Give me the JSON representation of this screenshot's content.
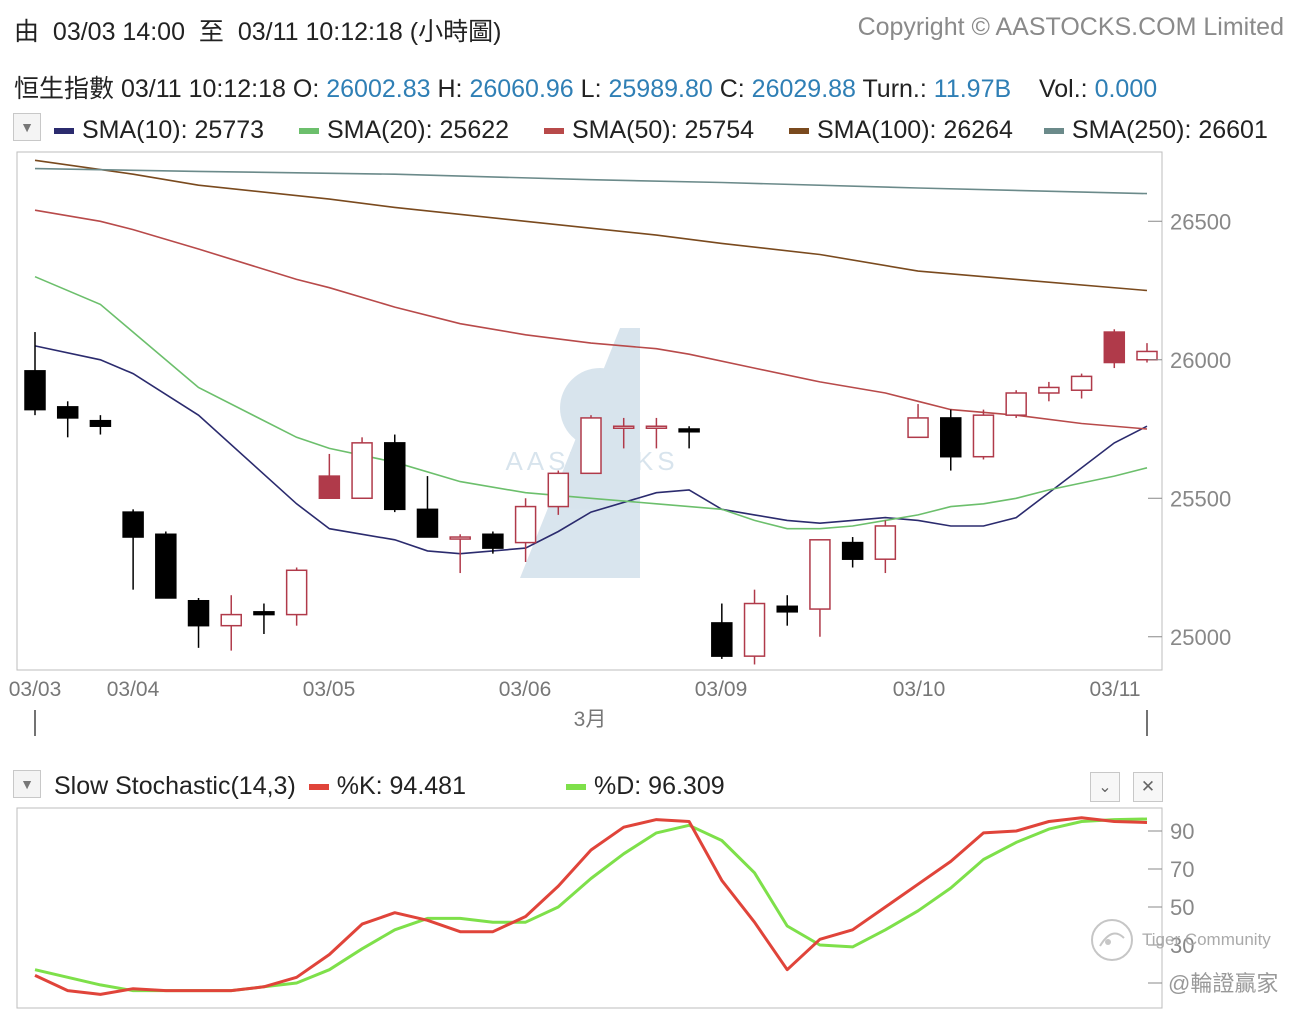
{
  "header": {
    "from_label": "由",
    "start": "03/03 14:00",
    "to_label": "至",
    "end": "03/11 10:12:18",
    "interval": "(小時圖)",
    "copyright": "Copyright © AASTOCKS.COM Limited"
  },
  "quote": {
    "name": "恒生指數",
    "time": "03/11 10:12:18",
    "o_label": "O:",
    "o": "26002.83",
    "h_label": "H:",
    "h": "26060.96",
    "l_label": "L:",
    "l": "25989.80",
    "c_label": "C:",
    "c": "26029.88",
    "turn_label": "Turn.:",
    "turn": "11.97B",
    "vol_label": "Vol.:",
    "vol": "0.000"
  },
  "sma_legend": [
    {
      "label": "SMA(10): 25773",
      "color": "#2b2b6e"
    },
    {
      "label": "SMA(20): 25622",
      "color": "#6cbf6c"
    },
    {
      "label": "SMA(50): 25754",
      "color": "#b84a4a"
    },
    {
      "label": "SMA(100): 26264",
      "color": "#7a4a1e"
    },
    {
      "label": "SMA(250): 26601",
      "color": "#6b8a8a"
    }
  ],
  "watermark": "AASTOCKS",
  "month_label": "3月",
  "stoch": {
    "title": "Slow Stochastic(14,3)",
    "k_label": "%K: 94.481",
    "d_label": "%D: 96.309",
    "k_color": "#e0443a",
    "d_color": "#7ee04a"
  },
  "tiger": {
    "brand": "Tiger Community",
    "user": "@輪證贏家"
  },
  "chart_data": [
    {
      "type": "candlestick",
      "x_tick_labels": [
        "03/03",
        "03/04",
        "03/05",
        "03/06",
        "03/09",
        "03/10",
        "03/11"
      ],
      "y_ticks": [
        25000,
        25500,
        26000,
        26500
      ],
      "ylim": [
        24880,
        26750
      ],
      "candles": [
        {
          "o": 25960,
          "h": 26100,
          "l": 25800,
          "c": 25820
        },
        {
          "o": 25830,
          "h": 25850,
          "l": 25720,
          "c": 25790
        },
        {
          "o": 25780,
          "h": 25800,
          "l": 25730,
          "c": 25760
        },
        {
          "o": 25450,
          "h": 25460,
          "l": 25170,
          "c": 25360
        },
        {
          "o": 25370,
          "h": 25380,
          "l": 25140,
          "c": 25140
        },
        {
          "o": 25130,
          "h": 25140,
          "l": 24960,
          "c": 25040
        },
        {
          "o": 25040,
          "h": 25150,
          "l": 24950,
          "c": 25080
        },
        {
          "o": 25090,
          "h": 25120,
          "l": 25010,
          "c": 25080
        },
        {
          "o": 25080,
          "h": 25250,
          "l": 25040,
          "c": 25240
        },
        {
          "o": 25500,
          "h": 25660,
          "l": 25500,
          "c": 25580
        },
        {
          "o": 25500,
          "h": 25720,
          "l": 25500,
          "c": 25700
        },
        {
          "o": 25700,
          "h": 25730,
          "l": 25450,
          "c": 25460
        },
        {
          "o": 25460,
          "h": 25580,
          "l": 25360,
          "c": 25360
        },
        {
          "o": 25360,
          "h": 25370,
          "l": 25230,
          "c": 25360
        },
        {
          "o": 25370,
          "h": 25380,
          "l": 25300,
          "c": 25320
        },
        {
          "o": 25340,
          "h": 25500,
          "l": 25270,
          "c": 25470
        },
        {
          "o": 25470,
          "h": 25600,
          "l": 25440,
          "c": 25590
        },
        {
          "o": 25590,
          "h": 25800,
          "l": 25590,
          "c": 25790
        },
        {
          "o": 25760,
          "h": 25790,
          "l": 25680,
          "c": 25760
        },
        {
          "o": 25760,
          "h": 25790,
          "l": 25680,
          "c": 25760
        },
        {
          "o": 25750,
          "h": 25760,
          "l": 25680,
          "c": 25740
        },
        {
          "o": 25050,
          "h": 25120,
          "l": 24920,
          "c": 24930
        },
        {
          "o": 24930,
          "h": 25170,
          "l": 24900,
          "c": 25120
        },
        {
          "o": 25110,
          "h": 25150,
          "l": 25040,
          "c": 25090
        },
        {
          "o": 25100,
          "h": 25350,
          "l": 25000,
          "c": 25350
        },
        {
          "o": 25340,
          "h": 25360,
          "l": 25250,
          "c": 25280
        },
        {
          "o": 25280,
          "h": 25420,
          "l": 25230,
          "c": 25400
        },
        {
          "o": 25720,
          "h": 25840,
          "l": 25720,
          "c": 25790
        },
        {
          "o": 25790,
          "h": 25820,
          "l": 25600,
          "c": 25650
        },
        {
          "o": 25650,
          "h": 25820,
          "l": 25640,
          "c": 25800
        },
        {
          "o": 25800,
          "h": 25890,
          "l": 25790,
          "c": 25880
        },
        {
          "o": 25880,
          "h": 25920,
          "l": 25850,
          "c": 25900
        },
        {
          "o": 25890,
          "h": 25950,
          "l": 25860,
          "c": 25940
        },
        {
          "o": 25990,
          "h": 26110,
          "l": 25970,
          "c": 26100
        },
        {
          "o": 26000,
          "h": 26060,
          "l": 25990,
          "c": 26030
        }
      ],
      "series": [
        {
          "name": "SMA(10)",
          "color": "#2b2b6e",
          "x": [
            0,
            2,
            3,
            5,
            8,
            9,
            11,
            12,
            13,
            15,
            16,
            17,
            19,
            20,
            21,
            22,
            23,
            24,
            25,
            26,
            27,
            28,
            29,
            30,
            31,
            33,
            34
          ],
          "values": [
            26050,
            26000,
            25950,
            25800,
            25480,
            25390,
            25350,
            25310,
            25300,
            25320,
            25380,
            25450,
            25520,
            25530,
            25460,
            25440,
            25420,
            25410,
            25420,
            25430,
            25420,
            25400,
            25400,
            25430,
            25520,
            25700,
            25760
          ]
        },
        {
          "name": "SMA(20)",
          "color": "#6cbf6c",
          "x": [
            0,
            2,
            3,
            5,
            8,
            9,
            11,
            13,
            15,
            17,
            19,
            21,
            22,
            23,
            24,
            25,
            26,
            27,
            28,
            29,
            30,
            31,
            33,
            34
          ],
          "values": [
            26300,
            26200,
            26100,
            25900,
            25720,
            25680,
            25630,
            25560,
            25520,
            25500,
            25480,
            25460,
            25420,
            25390,
            25390,
            25400,
            25420,
            25440,
            25470,
            25480,
            25500,
            25530,
            25580,
            25610
          ]
        },
        {
          "name": "SMA(50)",
          "color": "#b84a4a",
          "x": [
            0,
            2,
            3,
            5,
            8,
            9,
            11,
            13,
            15,
            17,
            19,
            20,
            22,
            24,
            26,
            27,
            28,
            30,
            32,
            34
          ],
          "values": [
            26540,
            26500,
            26470,
            26400,
            26290,
            26260,
            26190,
            26130,
            26090,
            26060,
            26040,
            26020,
            25970,
            25920,
            25880,
            25850,
            25820,
            25800,
            25770,
            25750
          ]
        },
        {
          "name": "SMA(100)",
          "color": "#7a4a1e",
          "x": [
            0,
            3,
            5,
            9,
            11,
            15,
            19,
            21,
            24,
            27,
            30,
            34
          ],
          "values": [
            26720,
            26670,
            26630,
            26580,
            26550,
            26500,
            26450,
            26420,
            26380,
            26320,
            26290,
            26250
          ]
        },
        {
          "name": "SMA(250)",
          "color": "#6b8a8a",
          "x": [
            0,
            5,
            11,
            17,
            21,
            27,
            34
          ],
          "values": [
            26690,
            26680,
            26670,
            26650,
            26640,
            26620,
            26600
          ]
        }
      ]
    },
    {
      "type": "line",
      "title": "Slow Stochastic(14,3)",
      "y_ticks": [
        30,
        50,
        70,
        90
      ],
      "ylim": [
        0,
        100
      ],
      "x": [
        0,
        1,
        2,
        3,
        4,
        5,
        6,
        7,
        8,
        9,
        10,
        11,
        12,
        13,
        14,
        15,
        16,
        17,
        18,
        19,
        20,
        21,
        22,
        23,
        24,
        25,
        26,
        27,
        28,
        29,
        30,
        31,
        32,
        33,
        34
      ],
      "series": [
        {
          "name": "%K",
          "values": [
            14,
            6,
            4,
            7,
            6,
            6,
            6,
            8,
            13,
            25,
            41,
            47,
            43,
            37,
            37,
            45,
            61,
            80,
            92,
            96,
            95,
            64,
            42,
            17,
            33,
            38,
            50,
            62,
            74,
            89,
            90,
            95,
            97,
            95,
            94.481
          ]
        },
        {
          "name": "%D",
          "values": [
            17,
            13,
            9,
            6,
            6,
            6,
            6,
            8,
            10,
            17,
            28,
            38,
            44,
            44,
            42,
            42,
            50,
            65,
            78,
            89,
            93,
            85,
            68,
            40,
            30,
            29,
            38,
            48,
            60,
            75,
            84,
            91,
            95,
            96,
            96.309
          ]
        }
      ]
    }
  ]
}
